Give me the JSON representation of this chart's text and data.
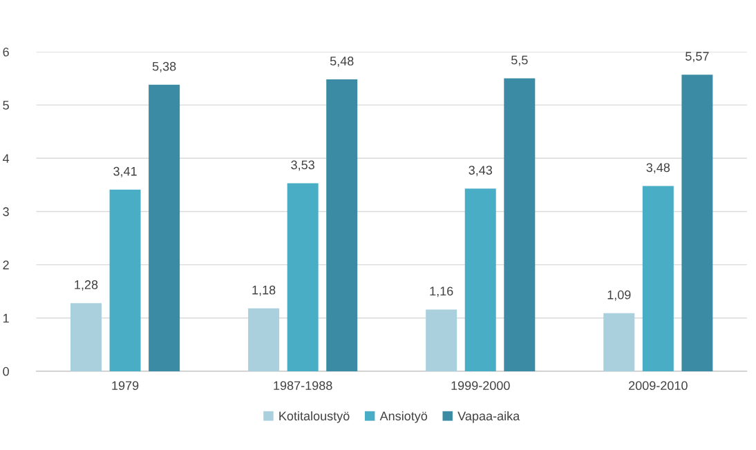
{
  "chart_data": {
    "type": "bar",
    "categories": [
      "1979",
      "1987-1988",
      "1999-2000",
      "2009-2010"
    ],
    "series": [
      {
        "name": "Kotitaloustyö",
        "color": "#a9d0dc",
        "values": [
          1.28,
          1.18,
          1.16,
          1.09
        ],
        "value_labels": [
          "1,28",
          "1,18",
          "1,16",
          "1,09"
        ]
      },
      {
        "name": "Ansiotyö",
        "color": "#4aadc6",
        "values": [
          3.41,
          3.53,
          3.43,
          3.48
        ],
        "value_labels": [
          "3,41",
          "3,53",
          "3,43",
          "3,48"
        ]
      },
      {
        "name": "Vapaa-aika",
        "color": "#3a8ba3",
        "values": [
          5.38,
          5.48,
          5.5,
          5.57
        ],
        "value_labels": [
          "5,38",
          "5,48",
          "5,5",
          "5,57"
        ]
      }
    ],
    "ylim": [
      0,
      6
    ],
    "yticks": [
      0,
      1,
      2,
      3,
      4,
      5,
      6
    ],
    "grid": "y",
    "legend": "bottom"
  }
}
